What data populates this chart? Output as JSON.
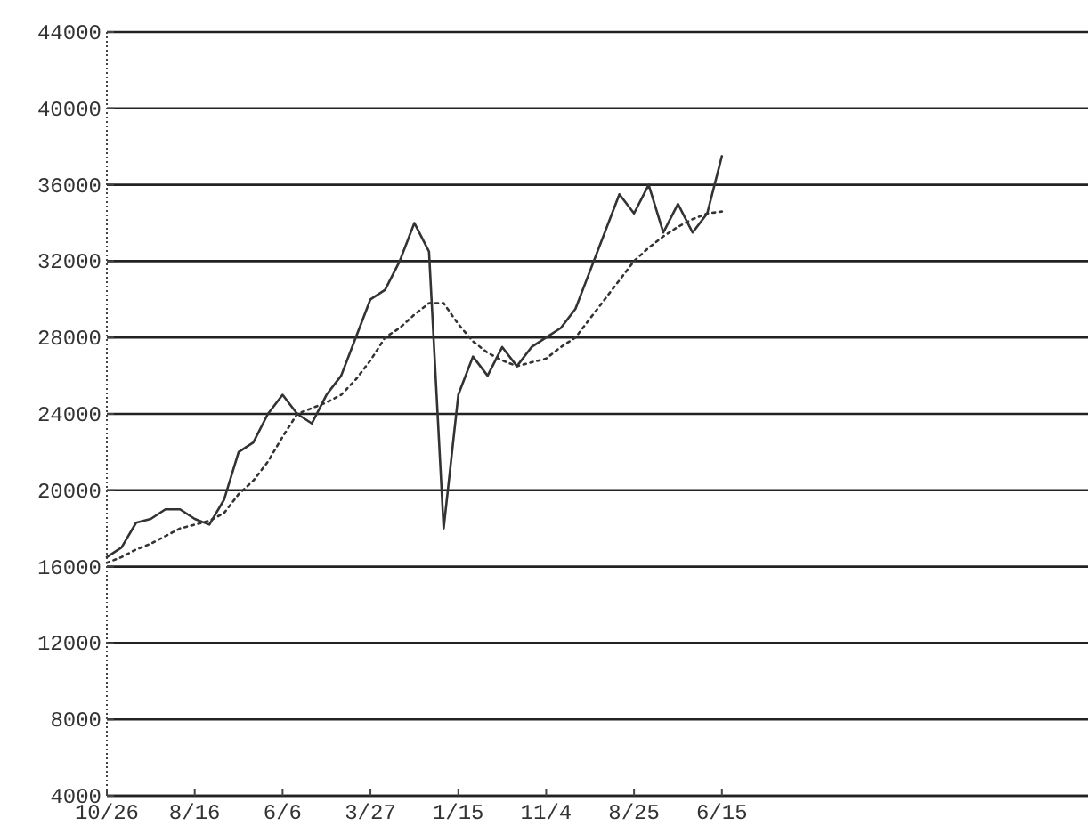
{
  "chart_data": {
    "type": "line",
    "categories": [
      "10/26",
      null,
      null,
      null,
      null,
      null,
      "8/16",
      null,
      null,
      null,
      null,
      null,
      "6/6",
      null,
      null,
      null,
      null,
      null,
      "3/27",
      null,
      null,
      null,
      null,
      null,
      "1/15",
      null,
      null,
      null,
      null,
      null,
      "11/4",
      null,
      null,
      null,
      null,
      null,
      "8/25",
      null,
      null,
      null,
      null,
      null,
      "6/15",
      null,
      null,
      null,
      null,
      null,
      null,
      null,
      null,
      null,
      null,
      null,
      null,
      null,
      null,
      null,
      null,
      null,
      null,
      null,
      null,
      null,
      null,
      null,
      null,
      null
    ],
    "ylim": [
      4000,
      44000
    ],
    "yticks": [
      4000,
      8000,
      12000,
      16000,
      20000,
      24000,
      28000,
      32000,
      36000,
      40000,
      44000
    ],
    "grid": "y",
    "series": [
      {
        "color": "#333333",
        "values": [
          16500,
          17000,
          18300,
          18500,
          19000,
          19000,
          18500,
          18200,
          19500,
          22000,
          22500,
          24000,
          25000,
          24000,
          23500,
          25000,
          26000,
          28000,
          30000,
          30500,
          32000,
          34000,
          32500,
          18000,
          25000,
          27000,
          26000,
          27500,
          26500,
          27500,
          28000,
          28500,
          29500,
          31500,
          33500,
          35500,
          34500,
          36000,
          33500,
          35000,
          33500,
          34500,
          37500,
          null,
          null,
          null,
          null,
          null,
          null,
          null,
          null,
          null,
          null,
          null,
          null,
          null,
          null,
          null,
          null,
          null,
          null,
          null,
          null,
          null,
          null,
          null,
          null,
          null
        ]
      },
      {
        "color": "#333333",
        "line_style": "dotted",
        "values": [
          16200,
          16500,
          16900,
          17200,
          17600,
          18000,
          18200,
          18400,
          18800,
          19800,
          20500,
          21500,
          22800,
          24000,
          24300,
          24600,
          25000,
          25800,
          26800,
          28000,
          28500,
          29200,
          29800,
          29800,
          28700,
          27800,
          27200,
          26800,
          26500,
          26700,
          26900,
          27500,
          28000,
          29000,
          30000,
          31000,
          32000,
          32700,
          33300,
          33800,
          34200,
          34500,
          34600,
          null,
          null,
          null,
          null,
          null,
          null,
          null,
          null,
          null,
          null,
          null,
          null,
          null,
          null,
          null,
          null,
          null,
          null,
          null,
          null,
          null,
          null,
          null,
          null,
          null
        ]
      }
    ]
  }
}
